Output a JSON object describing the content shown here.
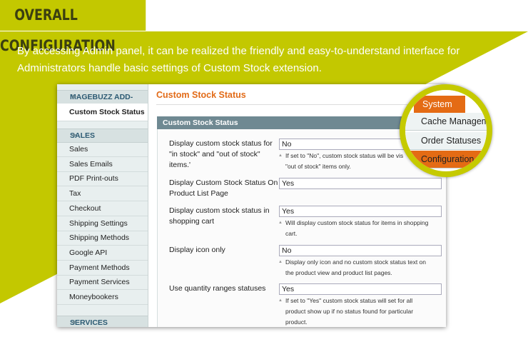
{
  "header": {
    "title": "OVERALL CONFIGURATION"
  },
  "intro": {
    "lines": [
      "By accessing Admin panel, it can be realized the friendly and easy-to-understand interface for",
      "Administrators handle basic settings of Custom Stock extension."
    ]
  },
  "sidebar": {
    "sections": [
      {
        "title": "MAGEBUZZ ADD-ONS",
        "items": [
          "Custom Stock Status"
        ]
      },
      {
        "title": "SALES",
        "items": [
          "Sales",
          "Sales Emails",
          "PDF Print-outs",
          "Tax",
          "Checkout",
          "Shipping Settings",
          "Shipping Methods",
          "Google API",
          "Payment Methods",
          "Payment Services",
          "Moneybookers"
        ]
      },
      {
        "title": "SERVICES",
        "items": []
      }
    ]
  },
  "main": {
    "title": "Custom Stock Status",
    "fieldset_title": "Custom Stock Status",
    "fields": [
      {
        "label": [
          "Display custom stock status for",
          "\"in stock\" and \"out of stock\"",
          "items.'"
        ],
        "value": "No",
        "note": [
          "If set to \"No\", custom stock status will be vis",
          "\"out of stock\" items only."
        ]
      },
      {
        "label": [
          "Display Custom Stock Status On",
          "Product List Page"
        ],
        "value": "Yes",
        "note": []
      },
      {
        "label": [
          "Display custom stock status in",
          "shopping cart"
        ],
        "value": "Yes",
        "note": [
          "Will display custom stock status for items in shopping",
          "cart."
        ]
      },
      {
        "label": [
          "Display icon only"
        ],
        "value": "No",
        "note": [
          "Display only icon and no custom stock status text on",
          "the product view and product list pages."
        ]
      },
      {
        "label": [
          "Use quantity ranges statuses"
        ],
        "value": "Yes",
        "note": [
          "If set to \"Yes\" custom stock status will set for all",
          "product show up if no status found for particular",
          "product."
        ]
      }
    ]
  },
  "popup": {
    "tab": "System",
    "items": [
      "Cache Managem",
      "Order Statuses",
      "Configuration"
    ]
  }
}
